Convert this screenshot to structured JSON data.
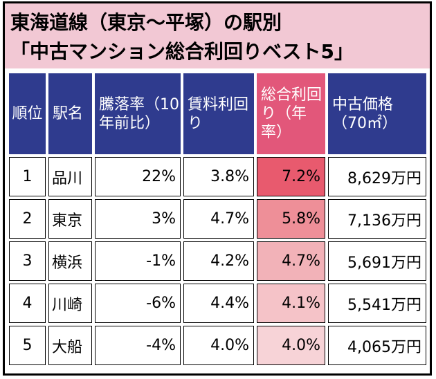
{
  "title": {
    "line1": "東海道線（東京〜平塚）の駅別",
    "line2": "「中古マンション総合利回りベスト5」"
  },
  "colors": {
    "title_bg": "#f2c8d4",
    "header_bg": "#2f3b8e",
    "header_highlight": "#e2577a",
    "yield_shades": [
      "#e85a6e",
      "#ee8f98",
      "#f2b2b8",
      "#f5c3c8",
      "#f7d3d7"
    ]
  },
  "headers": {
    "rank": "順位",
    "station": "駅名",
    "appreciation": "騰落率（10年前比）",
    "rent_yield": "賃料利回り",
    "total_yield": "総合利回り（年率）",
    "price": "中古価格（70㎡）"
  },
  "rows": [
    {
      "rank": "1",
      "station": "品川",
      "appreciation": "22%",
      "rent_yield": "3.8%",
      "total_yield": "7.2%",
      "price": "8,629万円"
    },
    {
      "rank": "2",
      "station": "東京",
      "appreciation": "3%",
      "rent_yield": "4.7%",
      "total_yield": "5.8%",
      "price": "7,136万円"
    },
    {
      "rank": "3",
      "station": "横浜",
      "appreciation": "-1%",
      "rent_yield": "4.2%",
      "total_yield": "4.7%",
      "price": "5,691万円"
    },
    {
      "rank": "4",
      "station": "川崎",
      "appreciation": "-6%",
      "rent_yield": "4.4%",
      "total_yield": "4.1%",
      "price": "5,541万円"
    },
    {
      "rank": "5",
      "station": "大船",
      "appreciation": "-4%",
      "rent_yield": "4.0%",
      "total_yield": "4.0%",
      "price": "4,065万円"
    }
  ]
}
